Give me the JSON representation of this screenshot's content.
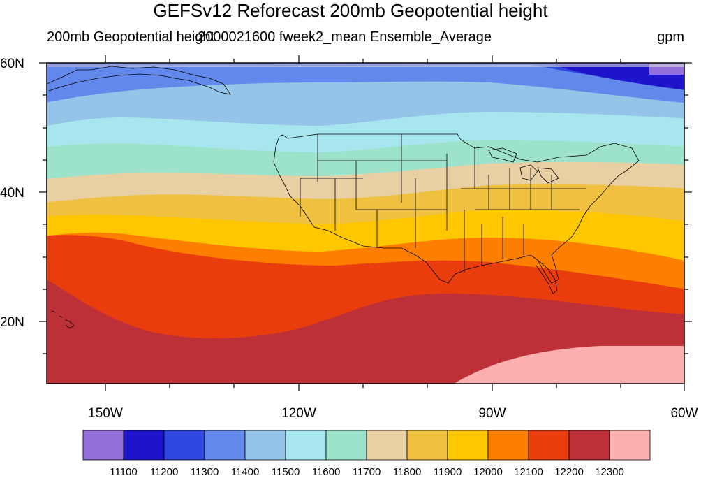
{
  "title": "GEFSv12 Reforecast 200mb Geopotential height",
  "subtitle_left": "200mb Geopotential height",
  "subtitle_mid": "2000021600 fweek2_mean Ensemble_Average",
  "subtitle_right": "gpm",
  "map": {
    "lat_labels": [
      "60N",
      "40N",
      "20N"
    ],
    "lon_labels": [
      "150W",
      "120W",
      "90W",
      "60W"
    ]
  },
  "colorbar": {
    "colors": [
      "#9370db",
      "#1d14cc",
      "#3048e0",
      "#6288eb",
      "#94c4e8",
      "#a8e6ef",
      "#9de3cb",
      "#e8cfa4",
      "#f0c040",
      "#fec700",
      "#fe7f00",
      "#ea3d0e",
      "#be3038",
      "#feb0b0"
    ],
    "labels": [
      "11100",
      "11200",
      "11300",
      "11400",
      "11500",
      "11600",
      "11700",
      "11800",
      "11900",
      "12000",
      "12100",
      "12200",
      "12300"
    ]
  }
}
